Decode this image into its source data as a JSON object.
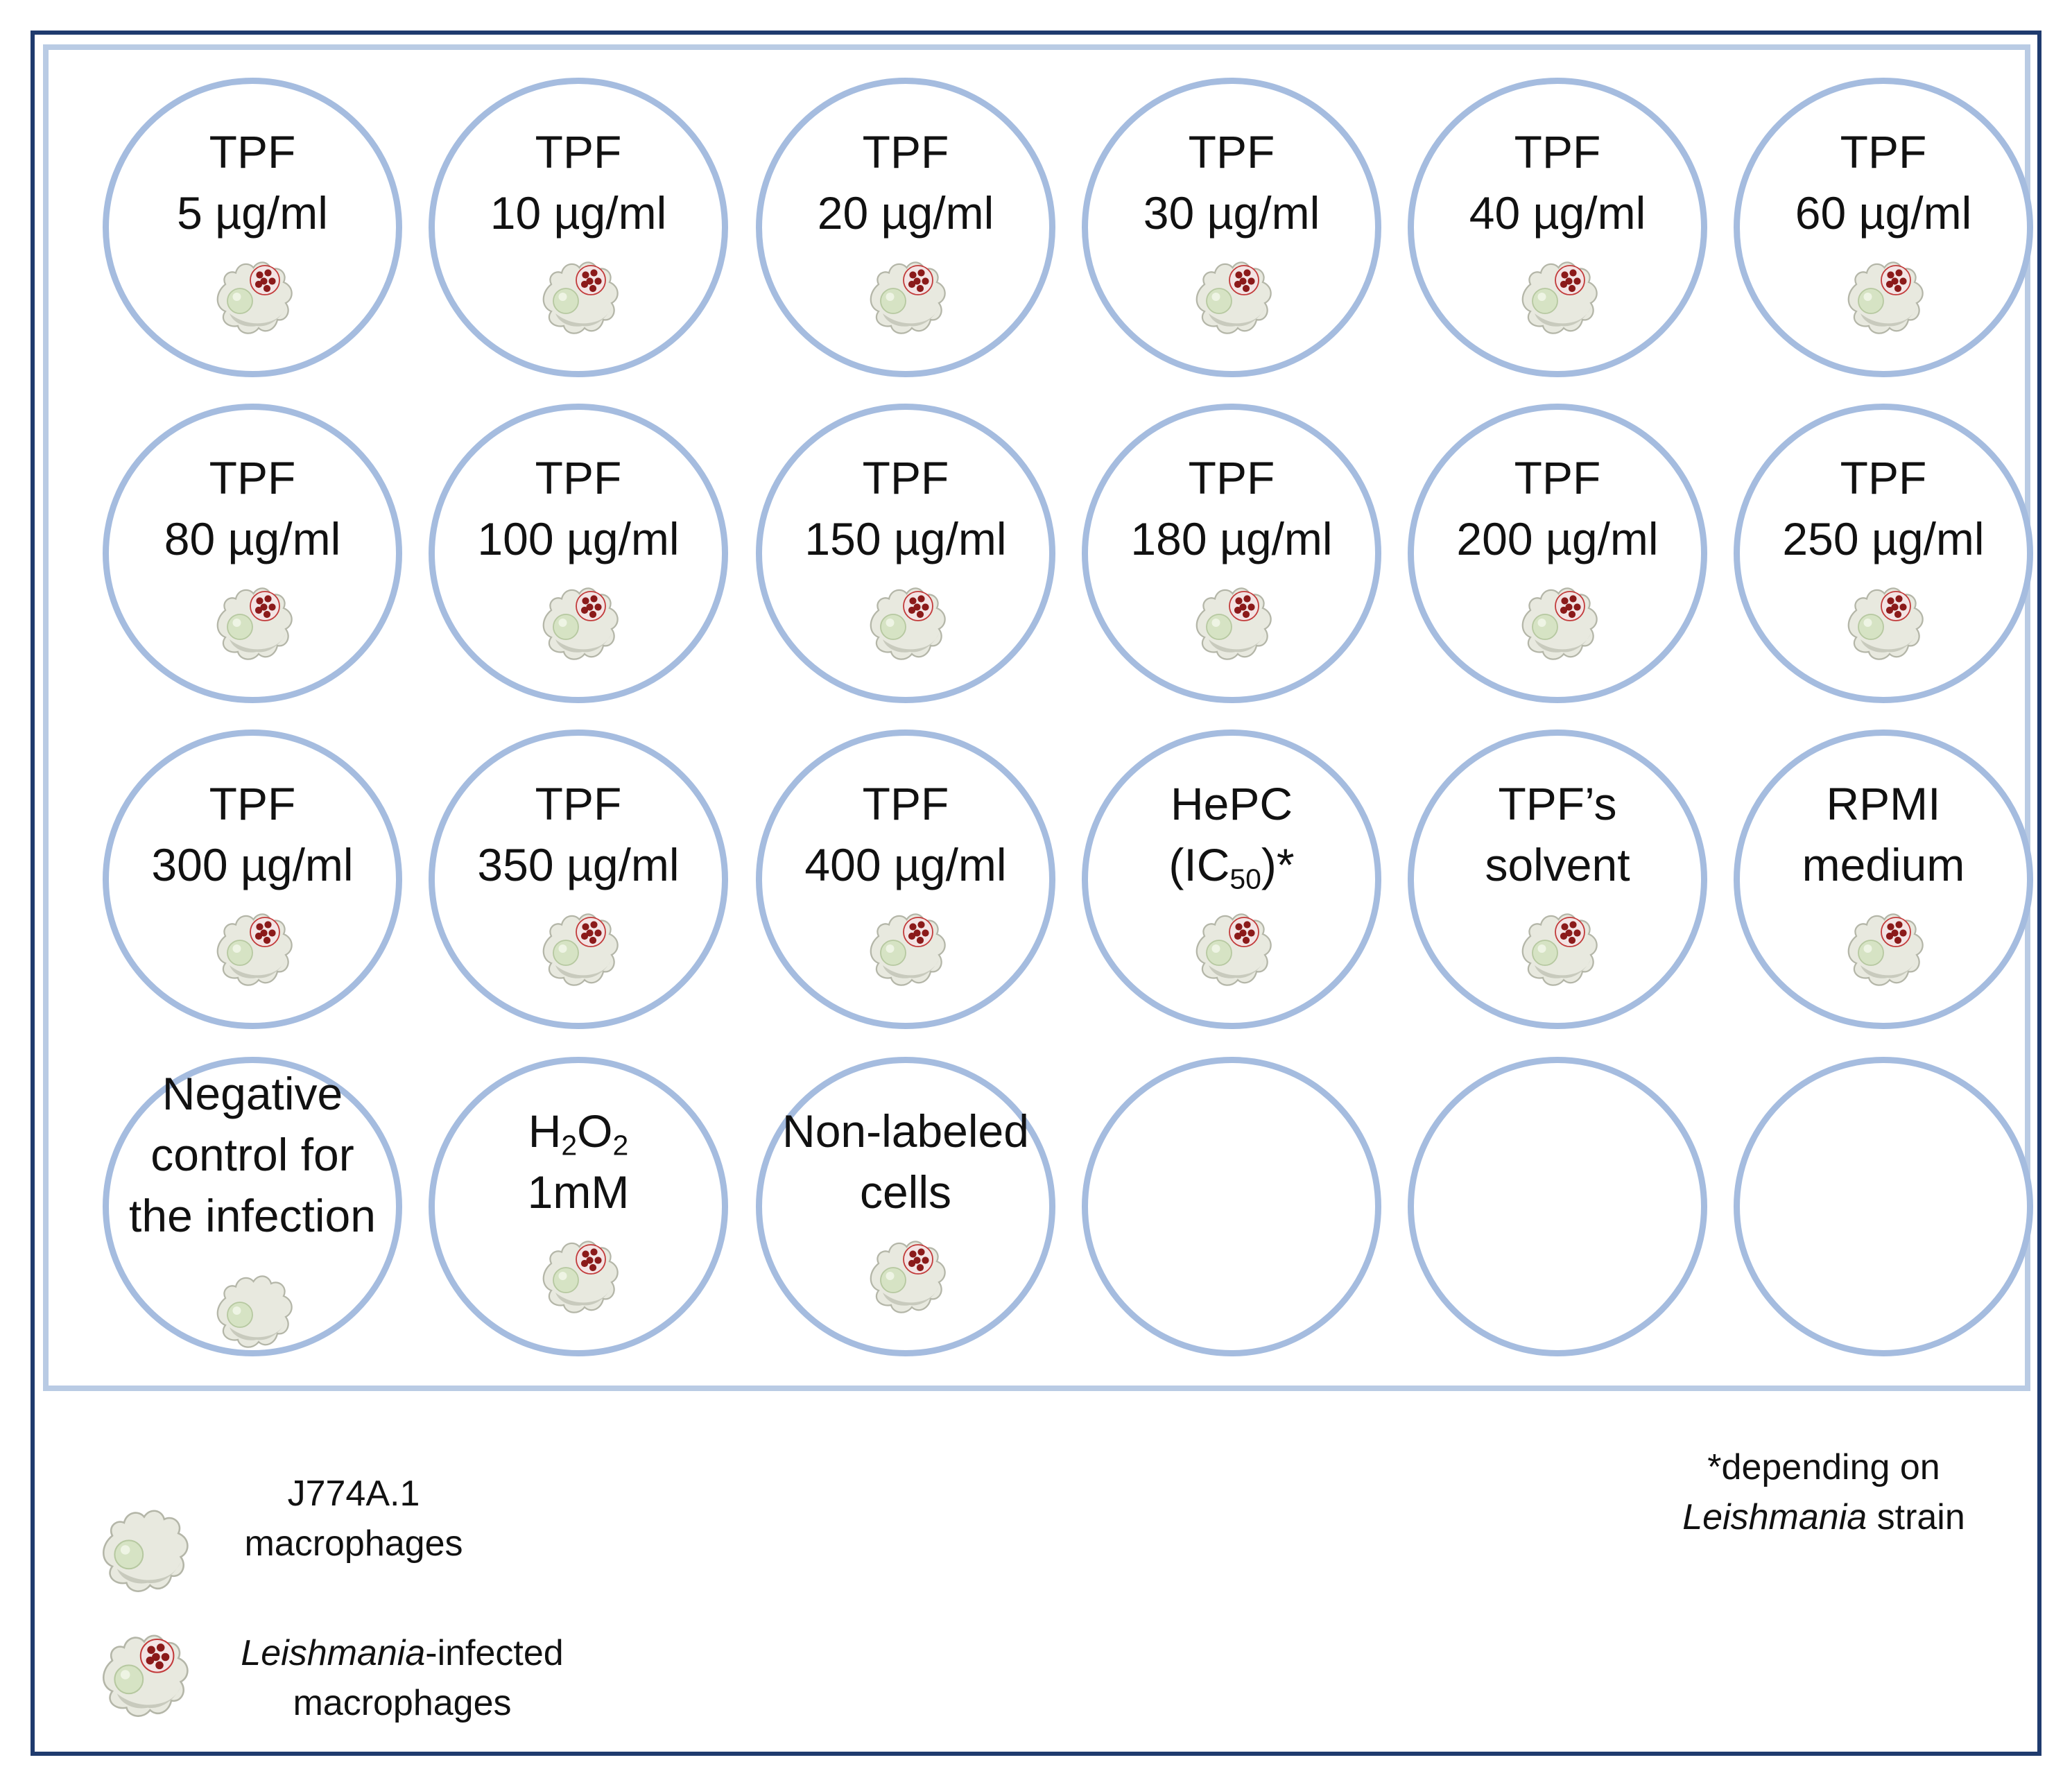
{
  "wells": [
    {
      "lines": [
        "TPF",
        "5 µg/ml"
      ],
      "cell": "infected"
    },
    {
      "lines": [
        "TPF",
        "10 µg/ml"
      ],
      "cell": "infected"
    },
    {
      "lines": [
        "TPF",
        "20 µg/ml"
      ],
      "cell": "infected"
    },
    {
      "lines": [
        "TPF",
        "30 µg/ml"
      ],
      "cell": "infected"
    },
    {
      "lines": [
        "TPF",
        "40 µg/ml"
      ],
      "cell": "infected"
    },
    {
      "lines": [
        "TPF",
        "60 µg/ml"
      ],
      "cell": "infected"
    },
    {
      "lines": [
        "TPF",
        "80 µg/ml"
      ],
      "cell": "infected"
    },
    {
      "lines": [
        "TPF",
        "100 µg/ml"
      ],
      "cell": "infected"
    },
    {
      "lines": [
        "TPF",
        "150 µg/ml"
      ],
      "cell": "infected"
    },
    {
      "lines": [
        "TPF",
        "180 µg/ml"
      ],
      "cell": "infected"
    },
    {
      "lines": [
        "TPF",
        "200 µg/ml"
      ],
      "cell": "infected"
    },
    {
      "lines": [
        "TPF",
        "250 µg/ml"
      ],
      "cell": "infected"
    },
    {
      "lines": [
        "TPF",
        "300 µg/ml"
      ],
      "cell": "infected"
    },
    {
      "lines": [
        "TPF",
        "350 µg/ml"
      ],
      "cell": "infected"
    },
    {
      "lines": [
        "TPF",
        "400 µg/ml"
      ],
      "cell": "infected"
    },
    {
      "lines": [
        "HePC",
        "(IC<sub>50</sub>)*"
      ],
      "cell": "infected"
    },
    {
      "lines": [
        "TPF’s",
        "solvent"
      ],
      "cell": "infected"
    },
    {
      "lines": [
        "RPMI",
        "medium"
      ],
      "cell": "infected"
    },
    {
      "lines": [
        "Negative",
        "control for",
        "the infection"
      ],
      "cell": "macrophage"
    },
    {
      "lines": [
        "H<sub>2</sub>O<sub>2</sub>",
        "1mM"
      ],
      "cell": "infected"
    },
    {
      "lines": [
        "Non-labeled",
        "cells"
      ],
      "cell": "infected"
    },
    {
      "lines": [],
      "cell": "none"
    },
    {
      "lines": [],
      "cell": "none"
    },
    {
      "lines": [],
      "cell": "none"
    }
  ],
  "legend": {
    "macrophage": {
      "line1": "J774A.1",
      "line2": "macrophages"
    },
    "infected": {
      "line1_italic": "Leishmania",
      "line1_rest": "-infected",
      "line2": "macrophages"
    }
  },
  "footnote": {
    "line1": "*depending  on",
    "line2_italic": "Leishmania",
    "line2_rest": " strain"
  },
  "colors": {
    "frame": "#1f3b6e",
    "well_border": "#a5bcdf",
    "plate_border": "#b9cbe4",
    "parasite": "#8b1a1a"
  }
}
